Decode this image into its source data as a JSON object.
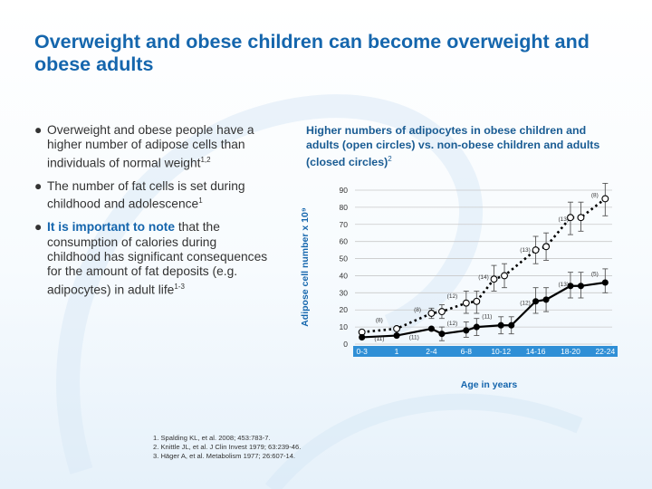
{
  "slide": {
    "title": "Overweight and obese children can become overweight and obese adults",
    "bullets": [
      {
        "text": "Overweight and obese people have a higher number of adipose cells than individuals of normal weight",
        "sup": "1,2"
      },
      {
        "text": "The number of fat cells is set during childhood and adolescence",
        "sup": "1"
      },
      {
        "emphasis": "It is important to note",
        "text": " that the consumption of calories during childhood has significant consequences for the amount of fat deposits (e.g. adipocytes) in adult life",
        "sup": "1-3"
      }
    ],
    "chart_heading": "Higher numbers of adipocytes in obese children and adults (open circles) vs. non-obese children and adults (closed circles)",
    "chart_heading_sup": "2",
    "references": [
      "1. Spalding KL, et al. 2008; 453:783-7.",
      "2. Knittle JL, et al. J Clin Invest 1979; 63:239-46.",
      "3. Häger A, et al. Metabolism 1977; 26:607-14."
    ],
    "bullet_glyph": "●",
    "colors": {
      "title": "#1566ad",
      "axis_band": "#2f8fd6",
      "line": "#000000"
    }
  },
  "chart_data": {
    "type": "line",
    "title": "",
    "xlabel": "Age in years",
    "ylabel": "Adipose cell number x 10⁹",
    "ylim": [
      0,
      90
    ],
    "yticks": [
      0,
      10,
      20,
      30,
      40,
      50,
      60,
      70,
      80,
      90
    ],
    "xtick_labels": [
      "0-3",
      "1",
      "2-4",
      "6-8",
      "10-12",
      "14-16",
      "18-20",
      "22-24"
    ],
    "xtick_positions": [
      0,
      1,
      2,
      3,
      4,
      5,
      6,
      7
    ],
    "series": [
      {
        "style": "open-dotted",
        "points": [
          {
            "x": 0.0,
            "y": 7
          },
          {
            "x": 1.0,
            "y": 9
          },
          {
            "x": 2.0,
            "y": 18
          },
          {
            "x": 2.3,
            "y": 19
          },
          {
            "x": 3.0,
            "y": 24
          },
          {
            "x": 3.3,
            "y": 25
          },
          {
            "x": 3.8,
            "y": 38
          },
          {
            "x": 4.1,
            "y": 40
          },
          {
            "x": 5.0,
            "y": 55
          },
          {
            "x": 5.3,
            "y": 57
          },
          {
            "x": 6.0,
            "y": 74
          },
          {
            "x": 6.3,
            "y": 74
          },
          {
            "x": 7.0,
            "y": 85
          }
        ],
        "errors": [
          {
            "x": 2.0,
            "lo": 15,
            "hi": 21
          },
          {
            "x": 2.3,
            "lo": 15,
            "hi": 23
          },
          {
            "x": 3.0,
            "lo": 18,
            "hi": 31
          },
          {
            "x": 3.3,
            "lo": 18,
            "hi": 31
          },
          {
            "x": 3.8,
            "lo": 31,
            "hi": 46
          },
          {
            "x": 4.1,
            "lo": 33,
            "hi": 47
          },
          {
            "x": 5.0,
            "lo": 47,
            "hi": 63
          },
          {
            "x": 5.3,
            "lo": 49,
            "hi": 65
          },
          {
            "x": 6.0,
            "lo": 64,
            "hi": 83
          },
          {
            "x": 6.3,
            "lo": 66,
            "hi": 83
          },
          {
            "x": 7.0,
            "lo": 75,
            "hi": 94
          }
        ]
      },
      {
        "style": "closed-solid",
        "points": [
          {
            "x": 0.0,
            "y": 4
          },
          {
            "x": 1.0,
            "y": 5
          },
          {
            "x": 2.0,
            "y": 9
          },
          {
            "x": 2.3,
            "y": 6
          },
          {
            "x": 3.0,
            "y": 8
          },
          {
            "x": 3.3,
            "y": 10
          },
          {
            "x": 4.0,
            "y": 11
          },
          {
            "x": 4.3,
            "y": 11
          },
          {
            "x": 5.0,
            "y": 25
          },
          {
            "x": 5.3,
            "y": 26
          },
          {
            "x": 6.0,
            "y": 34
          },
          {
            "x": 6.3,
            "y": 34
          },
          {
            "x": 7.0,
            "y": 36
          }
        ],
        "errors": [
          {
            "x": 2.3,
            "lo": 2,
            "hi": 10
          },
          {
            "x": 3.0,
            "lo": 4,
            "hi": 13
          },
          {
            "x": 3.3,
            "lo": 5,
            "hi": 15
          },
          {
            "x": 4.0,
            "lo": 6,
            "hi": 16
          },
          {
            "x": 4.3,
            "lo": 6,
            "hi": 16
          },
          {
            "x": 5.0,
            "lo": 18,
            "hi": 33
          },
          {
            "x": 5.3,
            "lo": 19,
            "hi": 33
          },
          {
            "x": 6.0,
            "lo": 27,
            "hi": 42
          },
          {
            "x": 6.3,
            "lo": 27,
            "hi": 42
          },
          {
            "x": 7.0,
            "lo": 30,
            "hi": 44
          }
        ]
      }
    ],
    "annotations": [
      {
        "text": "(8)",
        "x": 0.5,
        "y": 13
      },
      {
        "text": "(11)",
        "x": 0.5,
        "y": 2
      },
      {
        "text": "(11)",
        "x": 1.5,
        "y": 3
      },
      {
        "text": "(8)",
        "x": 1.6,
        "y": 19
      },
      {
        "text": "(12)",
        "x": 2.6,
        "y": 27
      },
      {
        "text": "(12)",
        "x": 2.6,
        "y": 11
      },
      {
        "text": "(11)",
        "x": 3.6,
        "y": 15
      },
      {
        "text": "(14)",
        "x": 3.5,
        "y": 38
      },
      {
        "text": "(13)",
        "x": 4.7,
        "y": 54
      },
      {
        "text": "(12)",
        "x": 4.7,
        "y": 23
      },
      {
        "text": "(13)",
        "x": 5.8,
        "y": 72
      },
      {
        "text": "(13)",
        "x": 5.8,
        "y": 34
      },
      {
        "text": "(5)",
        "x": 6.7,
        "y": 40
      },
      {
        "text": "(8)",
        "x": 6.7,
        "y": 86
      }
    ]
  }
}
